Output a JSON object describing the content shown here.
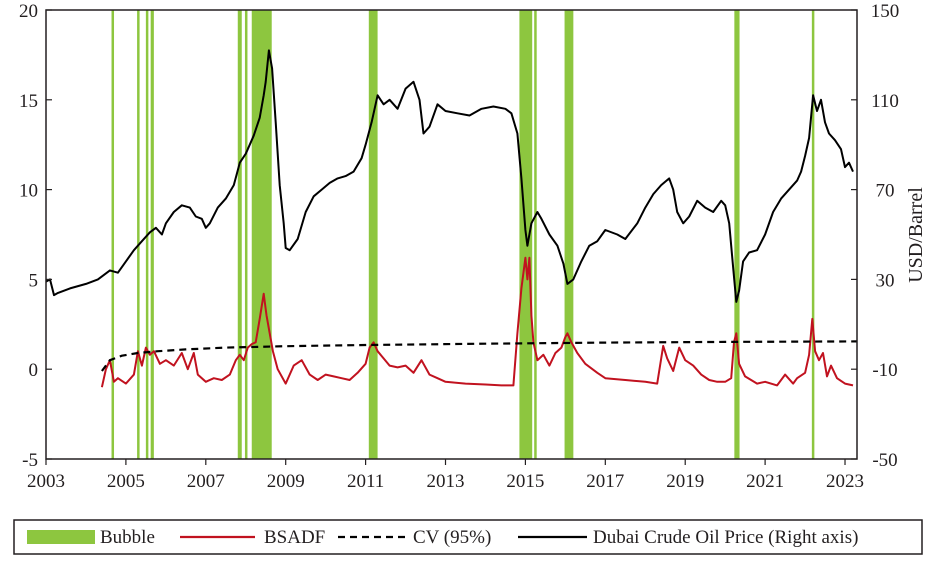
{
  "chart_data": {
    "type": "line",
    "title": "",
    "xlabel": "",
    "ylabel_left": "",
    "ylabel_right": "USD/Barrel",
    "xlim": [
      2003.0,
      2023.3
    ],
    "ylim_left": [
      -5,
      20
    ],
    "ylim_right": [
      -50,
      150
    ],
    "x_ticks": [
      2003,
      2005,
      2007,
      2009,
      2011,
      2013,
      2015,
      2017,
      2019,
      2021,
      2023
    ],
    "y_left_ticks": [
      -5,
      0,
      5,
      10,
      15,
      20
    ],
    "y_right_ticks": [
      -50,
      -10,
      30,
      70,
      110,
      150
    ],
    "grid": false,
    "legend_position": "bottom",
    "legend": [
      "Bubble",
      "BSADF",
      "CV (95%)",
      "Dubai Crude Oil Price (Right axis)"
    ],
    "colors": {
      "bubble": "#8dc63f",
      "bsadf": "#c1121f",
      "cv": "#000000",
      "price": "#000000",
      "axis": "#231f20"
    },
    "bubble_periods": [
      [
        2004.64,
        2004.7
      ],
      [
        2005.28,
        2005.33
      ],
      [
        2005.5,
        2005.55
      ],
      [
        2005.62,
        2005.7
      ],
      [
        2007.8,
        2007.9
      ],
      [
        2007.98,
        2008.03
      ],
      [
        2008.15,
        2008.65
      ],
      [
        2011.08,
        2011.3
      ],
      [
        2014.85,
        2015.17
      ],
      [
        2015.22,
        2015.27
      ],
      [
        2015.98,
        2016.2
      ],
      [
        2020.23,
        2020.36
      ],
      [
        2022.17,
        2022.21
      ]
    ],
    "series": [
      {
        "name": "BSADF",
        "axis": "left",
        "x": [
          2004.4,
          2004.5,
          2004.6,
          2004.7,
          2004.8,
          2005.0,
          2005.2,
          2005.3,
          2005.4,
          2005.5,
          2005.6,
          2005.7,
          2005.85,
          2006.0,
          2006.2,
          2006.4,
          2006.55,
          2006.7,
          2006.8,
          2007.0,
          2007.2,
          2007.4,
          2007.6,
          2007.75,
          2007.85,
          2007.95,
          2008.05,
          2008.15,
          2008.25,
          2008.35,
          2008.45,
          2008.52,
          2008.6,
          2008.68,
          2008.8,
          2009.0,
          2009.2,
          2009.4,
          2009.6,
          2009.8,
          2010.0,
          2010.2,
          2010.4,
          2010.6,
          2010.8,
          2011.0,
          2011.1,
          2011.2,
          2011.3,
          2011.45,
          2011.6,
          2011.8,
          2012.0,
          2012.2,
          2012.4,
          2012.6,
          2012.8,
          2013.0,
          2013.5,
          2014.0,
          2014.4,
          2014.7,
          2014.8,
          2014.9,
          2015.0,
          2015.05,
          2015.1,
          2015.15,
          2015.2,
          2015.3,
          2015.45,
          2015.6,
          2015.75,
          2015.9,
          2016.0,
          2016.05,
          2016.15,
          2016.3,
          2016.5,
          2016.8,
          2017.0,
          2017.5,
          2018.0,
          2018.3,
          2018.45,
          2018.55,
          2018.7,
          2018.85,
          2019.0,
          2019.2,
          2019.4,
          2019.6,
          2019.8,
          2020.0,
          2020.15,
          2020.22,
          2020.28,
          2020.35,
          2020.5,
          2020.8,
          2021.0,
          2021.3,
          2021.5,
          2021.7,
          2021.8,
          2022.0,
          2022.1,
          2022.18,
          2022.25,
          2022.35,
          2022.45,
          2022.55,
          2022.65,
          2022.8,
          2023.0,
          2023.2
        ],
        "values": [
          -1.0,
          0.0,
          0.5,
          -0.7,
          -0.5,
          -0.8,
          -0.3,
          1.0,
          0.2,
          1.2,
          0.8,
          1.0,
          0.3,
          0.5,
          0.2,
          0.9,
          0.0,
          0.9,
          -0.3,
          -0.7,
          -0.5,
          -0.6,
          -0.3,
          0.5,
          0.8,
          0.5,
          1.2,
          1.4,
          1.5,
          2.8,
          4.2,
          3.0,
          2.0,
          1.0,
          0.0,
          -0.8,
          0.2,
          0.5,
          -0.3,
          -0.6,
          -0.3,
          -0.4,
          -0.5,
          -0.6,
          -0.2,
          0.3,
          1.2,
          1.5,
          1.0,
          0.6,
          0.2,
          0.1,
          0.2,
          -0.2,
          0.5,
          -0.3,
          -0.5,
          -0.7,
          -0.8,
          -0.85,
          -0.9,
          -0.9,
          2.0,
          4.5,
          6.2,
          5.0,
          6.2,
          3.0,
          1.5,
          0.5,
          0.8,
          0.2,
          0.9,
          1.2,
          1.8,
          2.0,
          1.5,
          0.9,
          0.3,
          -0.2,
          -0.5,
          -0.6,
          -0.7,
          -0.8,
          1.3,
          0.6,
          -0.1,
          1.2,
          0.5,
          0.2,
          -0.3,
          -0.6,
          -0.7,
          -0.7,
          -0.5,
          1.5,
          2.0,
          0.3,
          -0.4,
          -0.8,
          -0.7,
          -0.9,
          -0.3,
          -0.8,
          -0.5,
          -0.2,
          0.8,
          2.8,
          1.0,
          0.5,
          0.9,
          -0.4,
          0.2,
          -0.5,
          -0.8,
          -0.9
        ]
      },
      {
        "name": "CV (95%)",
        "axis": "left",
        "x": [
          2004.4,
          2004.6,
          2004.9,
          2005.3,
          2005.8,
          2006.5,
          2007.5,
          2009.0,
          2011.0,
          2014.0,
          2017.0,
          2020.0,
          2023.3
        ],
        "values": [
          -0.1,
          0.5,
          0.75,
          0.9,
          1.0,
          1.1,
          1.2,
          1.28,
          1.35,
          1.42,
          1.48,
          1.52,
          1.55
        ]
      },
      {
        "name": "Dubai Crude Oil Price (Right axis)",
        "axis": "right",
        "x": [
          2003.0,
          2003.1,
          2003.2,
          2003.3,
          2003.6,
          2004.0,
          2004.3,
          2004.6,
          2004.8,
          2005.0,
          2005.2,
          2005.4,
          2005.6,
          2005.75,
          2005.9,
          2006.0,
          2006.2,
          2006.4,
          2006.6,
          2006.75,
          2006.9,
          2007.0,
          2007.1,
          2007.3,
          2007.5,
          2007.7,
          2007.85,
          2008.0,
          2008.2,
          2008.35,
          2008.45,
          2008.5,
          2008.58,
          2008.66,
          2008.75,
          2008.85,
          2008.95,
          2009.0,
          2009.1,
          2009.3,
          2009.5,
          2009.7,
          2009.9,
          2010.1,
          2010.3,
          2010.5,
          2010.7,
          2010.9,
          2011.0,
          2011.15,
          2011.3,
          2011.45,
          2011.6,
          2011.8,
          2012.0,
          2012.2,
          2012.35,
          2012.45,
          2012.6,
          2012.8,
          2013.0,
          2013.3,
          2013.6,
          2013.9,
          2014.2,
          2014.5,
          2014.65,
          2014.8,
          2014.9,
          2015.0,
          2015.05,
          2015.15,
          2015.3,
          2015.4,
          2015.6,
          2015.8,
          2015.95,
          2016.05,
          2016.2,
          2016.4,
          2016.6,
          2016.8,
          2017.0,
          2017.3,
          2017.5,
          2017.8,
          2018.0,
          2018.2,
          2018.4,
          2018.6,
          2018.7,
          2018.8,
          2018.95,
          2019.1,
          2019.3,
          2019.5,
          2019.7,
          2019.9,
          2020.0,
          2020.1,
          2020.2,
          2020.28,
          2020.35,
          2020.45,
          2020.6,
          2020.8,
          2021.0,
          2021.2,
          2021.4,
          2021.6,
          2021.8,
          2021.9,
          2022.0,
          2022.1,
          2022.2,
          2022.3,
          2022.4,
          2022.5,
          2022.6,
          2022.75,
          2022.9,
          2023.0,
          2023.1,
          2023.2
        ],
        "values": [
          29,
          30,
          23,
          24,
          26,
          28,
          30,
          34,
          33,
          38,
          43,
          47,
          51,
          53,
          50,
          55,
          60,
          63,
          62,
          58,
          57,
          53,
          55,
          62,
          66,
          72,
          82,
          86,
          94,
          102,
          112,
          118,
          132,
          124,
          100,
          72,
          55,
          44,
          43,
          48,
          60,
          67,
          70,
          73,
          75,
          76,
          78,
          84,
          90,
          100,
          112,
          108,
          110,
          106,
          115,
          118,
          110,
          95,
          98,
          108,
          105,
          104,
          103,
          106,
          107,
          106,
          104,
          95,
          75,
          52,
          45,
          55,
          60,
          57,
          50,
          45,
          37,
          28,
          30,
          38,
          45,
          47,
          52,
          50,
          48,
          55,
          62,
          68,
          72,
          75,
          70,
          60,
          55,
          58,
          65,
          62,
          60,
          65,
          63,
          55,
          35,
          20,
          25,
          38,
          42,
          43,
          50,
          60,
          66,
          70,
          74,
          78,
          85,
          93,
          112,
          105,
          110,
          100,
          95,
          92,
          88,
          80,
          82,
          78
        ]
      }
    ]
  }
}
